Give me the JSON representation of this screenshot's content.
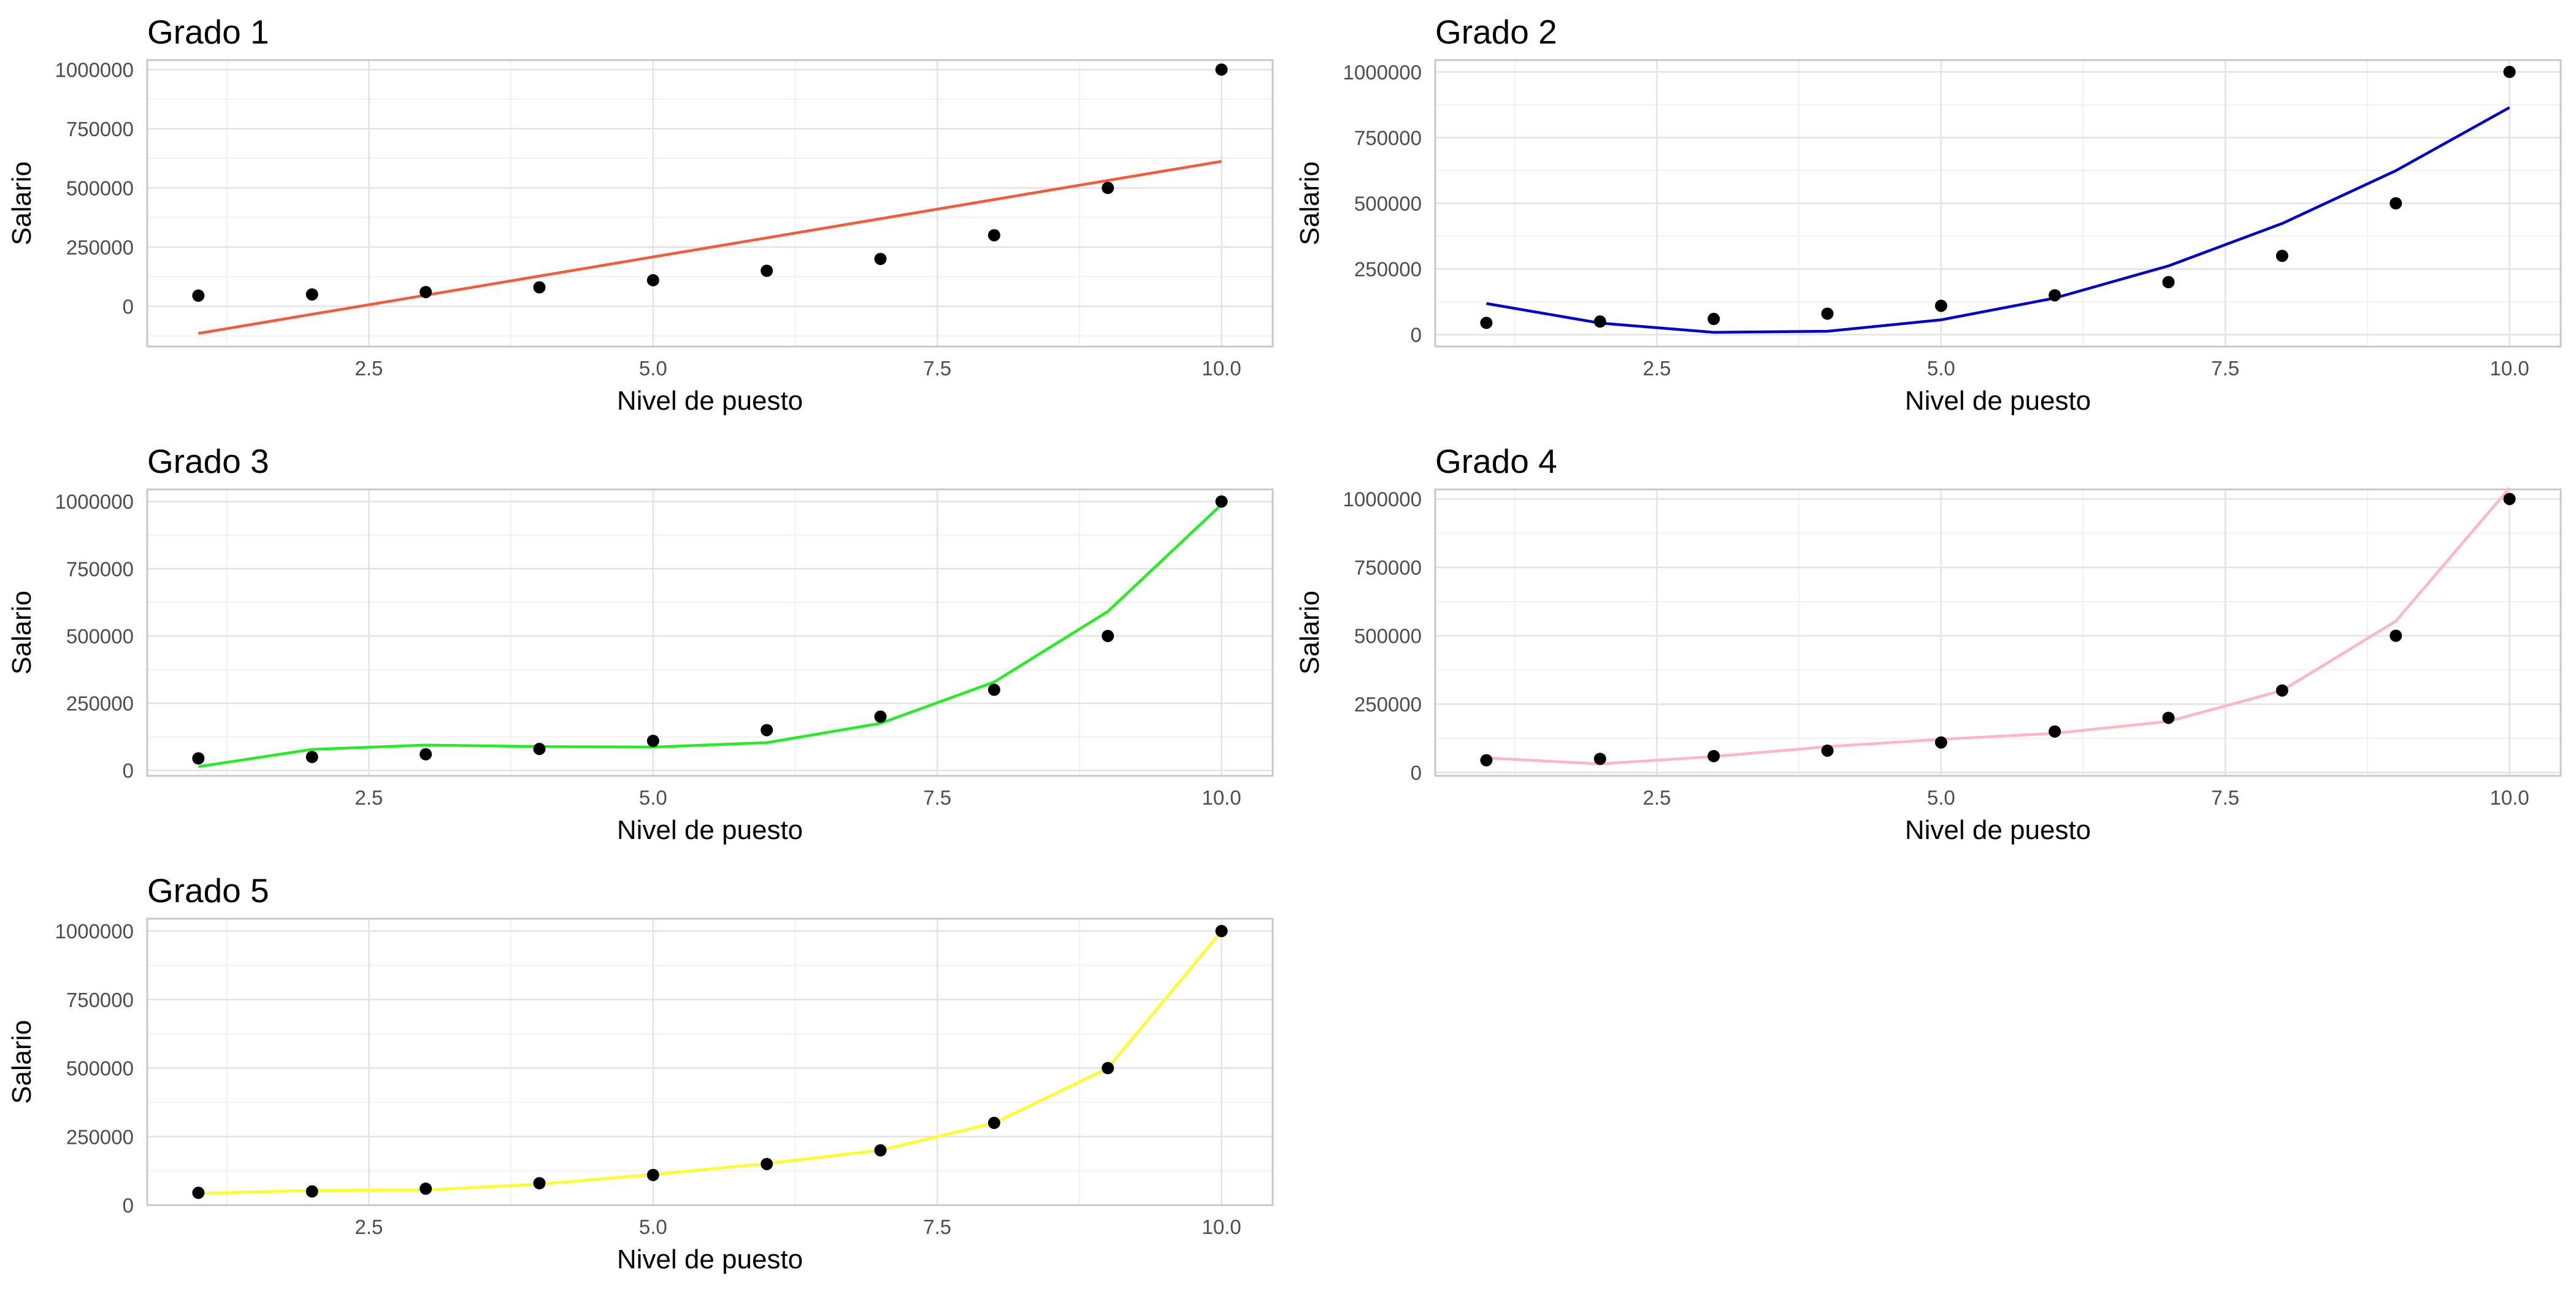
{
  "chart_data": [
    {
      "type": "line",
      "title": "Grado 1",
      "xlabel": "Nivel de puesto",
      "ylabel": "Salario",
      "xlim": [
        0.55,
        10.45
      ],
      "ylim": [
        -170000,
        1040000
      ],
      "xticks": [
        2.5,
        5.0,
        7.5,
        10.0
      ],
      "xtick_labels": [
        "2.5",
        "5.0",
        "7.5",
        "10.0"
      ],
      "yticks": [
        0,
        250000,
        500000,
        750000,
        1000000
      ],
      "ytick_labels": [
        "0",
        "250000",
        "500000",
        "750000",
        "1000000"
      ],
      "grid": true,
      "line_color": "#f25c3a",
      "points": {
        "x": [
          1,
          2,
          3,
          4,
          5,
          6,
          7,
          8,
          9,
          10
        ],
        "y": [
          45000,
          50000,
          60000,
          80000,
          110000,
          150000,
          200000,
          300000,
          500000,
          1000000
        ]
      },
      "fit": {
        "x": [
          1,
          2,
          3,
          4,
          5,
          6,
          7,
          8,
          9,
          10
        ],
        "y": [
          -114545,
          -33788,
          46970,
          127727,
          208485,
          289242,
          370000,
          450758,
          531515,
          612273
        ]
      }
    },
    {
      "type": "line",
      "title": "Grado 2",
      "xlabel": "Nivel de puesto",
      "ylabel": "Salario",
      "xlim": [
        0.55,
        10.45
      ],
      "ylim": [
        -45000,
        1045000
      ],
      "xticks": [
        2.5,
        5.0,
        7.5,
        10.0
      ],
      "xtick_labels": [
        "2.5",
        "5.0",
        "7.5",
        "10.0"
      ],
      "yticks": [
        0,
        250000,
        500000,
        750000,
        1000000
      ],
      "ytick_labels": [
        "0",
        "250000",
        "500000",
        "750000",
        "1000000"
      ],
      "grid": true,
      "line_color": "#0000cc",
      "points": {
        "x": [
          1,
          2,
          3,
          4,
          5,
          6,
          7,
          8,
          9,
          10
        ],
        "y": [
          45000,
          50000,
          60000,
          80000,
          110000,
          150000,
          200000,
          300000,
          500000,
          1000000
        ]
      },
      "fit": {
        "x": [
          1,
          2,
          3,
          4,
          5,
          6,
          7,
          8,
          9,
          10
        ],
        "y": [
          118727,
          44121,
          8881,
          13015,
          56515,
          139385,
          261621,
          423227,
          624197,
          864530
        ]
      }
    },
    {
      "type": "line",
      "title": "Grado 3",
      "xlabel": "Nivel de puesto",
      "ylabel": "Salario",
      "xlim": [
        0.55,
        10.45
      ],
      "ylim": [
        -20000,
        1045000
      ],
      "xticks": [
        2.5,
        5.0,
        7.5,
        10.0
      ],
      "xtick_labels": [
        "2.5",
        "5.0",
        "7.5",
        "10.0"
      ],
      "yticks": [
        0,
        250000,
        500000,
        750000,
        1000000
      ],
      "ytick_labels": [
        "0",
        "250000",
        "500000",
        "750000",
        "1000000"
      ],
      "grid": true,
      "line_color": "#22ee22",
      "points": {
        "x": [
          1,
          2,
          3,
          4,
          5,
          6,
          7,
          8,
          9,
          10
        ],
        "y": [
          45000,
          50000,
          60000,
          80000,
          110000,
          150000,
          200000,
          300000,
          500000,
          1000000
        ]
      },
      "fit": {
        "x": [
          1,
          2,
          3,
          4,
          5,
          6,
          7,
          8,
          9,
          10
        ],
        "y": [
          14182,
          78186,
          94483,
          88800,
          86865,
          103406,
          175152,
          328829,
          591166,
          988891
        ]
      }
    },
    {
      "type": "line",
      "title": "Grado 4",
      "xlabel": "Nivel de puesto",
      "ylabel": "Salario",
      "xlim": [
        0.55,
        10.45
      ],
      "ylim": [
        -12000,
        1035000
      ],
      "xticks": [
        2.5,
        5.0,
        7.5,
        10.0
      ],
      "xtick_labels": [
        "2.5",
        "5.0",
        "7.5",
        "10.0"
      ],
      "yticks": [
        0,
        250000,
        500000,
        750000,
        1000000
      ],
      "ytick_labels": [
        "0",
        "250000",
        "500000",
        "750000",
        "1000000"
      ],
      "grid": true,
      "line_color": "#ffb6c1",
      "points": {
        "x": [
          1,
          2,
          3,
          4,
          5,
          6,
          7,
          8,
          9,
          10
        ],
        "y": [
          45000,
          50000,
          60000,
          80000,
          110000,
          150000,
          200000,
          300000,
          500000,
          1000000
        ]
      },
      "fit": {
        "x": [
          1,
          2,
          3,
          4,
          5,
          6,
          7,
          8,
          9,
          10
        ],
        "y": [
          53357,
          31758,
          58646,
          94654,
          121631,
          143632,
          186923,
          299976,
          553473,
          1040300
        ]
      }
    },
    {
      "type": "line",
      "title": "Grado 5",
      "xlabel": "Nivel de puesto",
      "ylabel": "Salario",
      "xlim": [
        0.55,
        10.45
      ],
      "ylim": [
        0,
        1045000
      ],
      "xticks": [
        2.5,
        5.0,
        7.5,
        10.0
      ],
      "xtick_labels": [
        "2.5",
        "5.0",
        "7.5",
        "10.0"
      ],
      "yticks": [
        0,
        250000,
        500000,
        750000,
        1000000
      ],
      "ytick_labels": [
        "0",
        "250000",
        "500000",
        "750000",
        "1000000"
      ],
      "grid": true,
      "line_color": "#ffff22",
      "points": {
        "x": [
          1,
          2,
          3,
          4,
          5,
          6,
          7,
          8,
          9,
          10
        ],
        "y": [
          45000,
          50000,
          60000,
          80000,
          110000,
          150000,
          200000,
          300000,
          500000,
          1000000
        ]
      },
      "fit": {
        "x": [
          1,
          2,
          3,
          4,
          5,
          6,
          7,
          8,
          9,
          10
        ],
        "y": [
          43020,
          54000,
          55500,
          77000,
          112000,
          152000,
          201000,
          300000,
          500000,
          1000000
        ]
      }
    }
  ]
}
